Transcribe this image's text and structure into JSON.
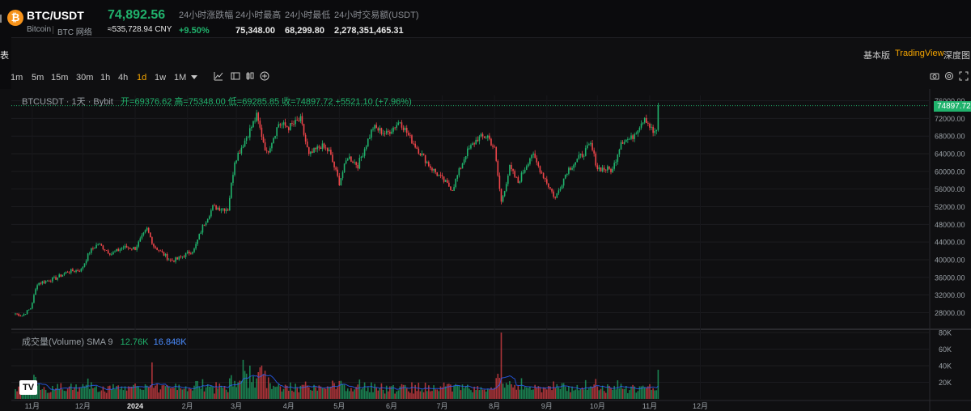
{
  "header": {
    "pair": "BTC/USDT",
    "coin_name": "Bitcoin",
    "network": "BTC 网络",
    "price": "74,892.56",
    "price_cny": "≈535,728.94 CNY",
    "stats": [
      {
        "label": "24小时涨跌幅",
        "value": "+9.50%",
        "positive": true
      },
      {
        "label": "24小时最高",
        "value": "75,348.00"
      },
      {
        "label": "24小时最低",
        "value": "68,299.80"
      },
      {
        "label": "24小时交易额(USDT)",
        "value": "2,278,351,465.31"
      }
    ]
  },
  "section_label": "表",
  "view_tabs": [
    "基本版",
    "TradingView",
    "深度图"
  ],
  "active_view": "TradingView",
  "timeframes": [
    "1m",
    "5m",
    "15m",
    "30m",
    "1h",
    "4h",
    "1d",
    "1w",
    "1M"
  ],
  "active_timeframe": "1d",
  "legend": {
    "symbol": "BTCUSDT · 1天 · Bybit",
    "open": "开=69376.62",
    "high": "高=75348.00",
    "low": "低=69285.85",
    "close": "收=74897.72",
    "change": "+5521.10 (+7.96%)"
  },
  "price_tag": "74897.72",
  "volume_legend": {
    "label": "成交量(Volume) SMA 9",
    "v1": "12.76K",
    "v2": "16.848K"
  },
  "colors": {
    "up": "#20b26c",
    "down": "#ef454a",
    "accent": "#f7a600",
    "sma": "#2962ff"
  },
  "chart_data": {
    "type": "candlestick",
    "price_axis": {
      "ticks": [
        28000,
        32000,
        36000,
        40000,
        44000,
        48000,
        52000,
        56000,
        60000,
        64000,
        68000,
        72000,
        76000
      ],
      "range": [
        24600,
        77200
      ]
    },
    "volume_axis": {
      "ticks": [
        "20K",
        "40K",
        "60K",
        "80K"
      ],
      "range": [
        0,
        82000
      ]
    },
    "x_labels": [
      "11月",
      "12月",
      "2024",
      "2月",
      "3月",
      "4月",
      "5月",
      "6月",
      "7月",
      "8月",
      "9月",
      "10月",
      "11月",
      "12月"
    ],
    "series": {
      "close_anchors": [
        [
          "2023-10-22",
          27800
        ],
        [
          "2023-10-26",
          27300
        ],
        [
          "2023-10-31",
          29000
        ],
        [
          "2023-11-04",
          34600
        ],
        [
          "2023-11-15",
          35800
        ],
        [
          "2023-11-22",
          37300
        ],
        [
          "2023-11-30",
          37700
        ],
        [
          "2023-12-05",
          41800
        ],
        [
          "2023-12-10",
          43600
        ],
        [
          "2023-12-18",
          41300
        ],
        [
          "2023-12-25",
          42800
        ],
        [
          "2024-01-01",
          42600
        ],
        [
          "2024-01-08",
          46900
        ],
        [
          "2024-01-12",
          43200
        ],
        [
          "2024-01-22",
          39800
        ],
        [
          "2024-01-26",
          40100
        ],
        [
          "2024-02-05",
          42300
        ],
        [
          "2024-02-10",
          47500
        ],
        [
          "2024-02-16",
          51900
        ],
        [
          "2024-02-25",
          51500
        ],
        [
          "2024-02-29",
          62500
        ],
        [
          "2024-03-06",
          67000
        ],
        [
          "2024-03-13",
          72500
        ],
        [
          "2024-03-19",
          64000
        ],
        [
          "2024-03-26",
          70800
        ],
        [
          "2024-04-01",
          70000
        ],
        [
          "2024-04-08",
          71700
        ],
        [
          "2024-04-13",
          63500
        ],
        [
          "2024-04-20",
          65800
        ],
        [
          "2024-04-25",
          64500
        ],
        [
          "2024-05-01",
          57500
        ],
        [
          "2024-05-06",
          63400
        ],
        [
          "2024-05-12",
          61400
        ],
        [
          "2024-05-21",
          70000
        ],
        [
          "2024-05-29",
          68500
        ],
        [
          "2024-06-06",
          71400
        ],
        [
          "2024-06-12",
          67500
        ],
        [
          "2024-06-24",
          61000
        ],
        [
          "2024-07-04",
          57000
        ],
        [
          "2024-07-07",
          56000
        ],
        [
          "2024-07-15",
          64000
        ],
        [
          "2024-07-22",
          67500
        ],
        [
          "2024-07-28",
          68000
        ],
        [
          "2024-08-01",
          65000
        ],
        [
          "2024-08-05",
          53000
        ],
        [
          "2024-08-10",
          60800
        ],
        [
          "2024-08-15",
          57500
        ],
        [
          "2024-08-23",
          64000
        ],
        [
          "2024-08-30",
          59000
        ],
        [
          "2024-09-06",
          53900
        ],
        [
          "2024-09-13",
          60200
        ],
        [
          "2024-09-20",
          63000
        ],
        [
          "2024-09-27",
          66000
        ],
        [
          "2024-10-01",
          60800
        ],
        [
          "2024-10-10",
          60300
        ],
        [
          "2024-10-15",
          66900
        ],
        [
          "2024-10-21",
          67400
        ],
        [
          "2024-10-29",
          72400
        ],
        [
          "2024-11-03",
          68800
        ],
        [
          "2024-11-05",
          69376
        ],
        [
          "2024-11-06",
          74897
        ]
      ]
    }
  }
}
